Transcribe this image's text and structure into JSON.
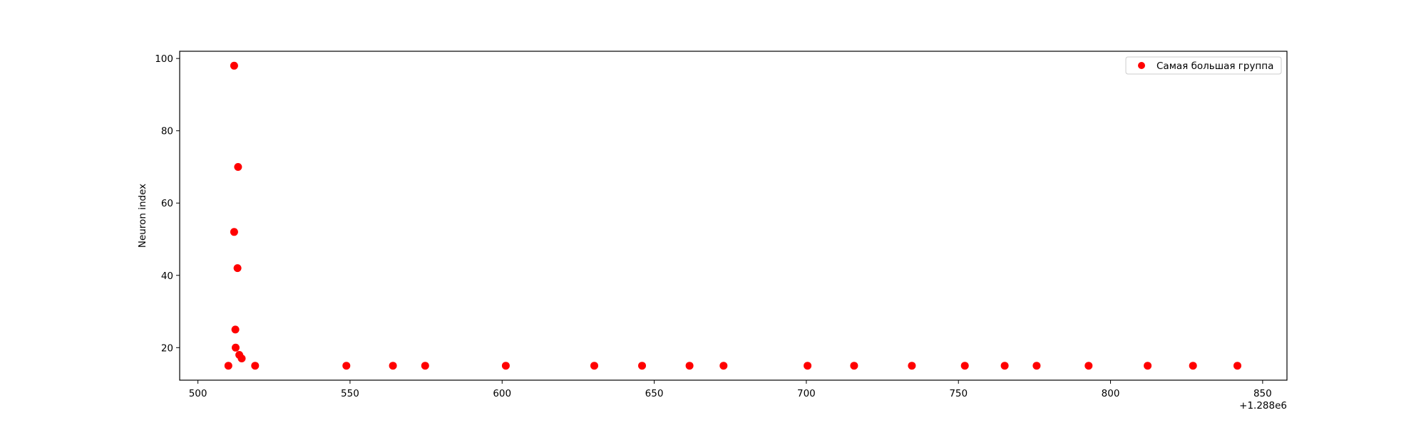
{
  "chart_data": {
    "type": "scatter",
    "title": "",
    "xlabel": "",
    "ylabel": "Neuron index",
    "x_offset_label": "+1.288e6",
    "xlim": [
      494,
      858
    ],
    "ylim": [
      11,
      102
    ],
    "x_ticks": [
      500,
      550,
      600,
      650,
      700,
      750,
      800,
      850
    ],
    "y_ticks": [
      20,
      40,
      60,
      80,
      100
    ],
    "grid": false,
    "legend_position": "top-right",
    "series": [
      {
        "name": "Самая большая группа",
        "color": "#ff0000",
        "points": [
          {
            "x": 510.0,
            "y": 15
          },
          {
            "x": 511.9,
            "y": 98
          },
          {
            "x": 511.9,
            "y": 52
          },
          {
            "x": 512.3,
            "y": 25
          },
          {
            "x": 512.4,
            "y": 20
          },
          {
            "x": 513.0,
            "y": 42
          },
          {
            "x": 513.2,
            "y": 70
          },
          {
            "x": 513.6,
            "y": 18
          },
          {
            "x": 514.4,
            "y": 17
          },
          {
            "x": 518.8,
            "y": 15
          },
          {
            "x": 548.8,
            "y": 15
          },
          {
            "x": 564.1,
            "y": 15
          },
          {
            "x": 574.7,
            "y": 15
          },
          {
            "x": 601.2,
            "y": 15
          },
          {
            "x": 630.3,
            "y": 15
          },
          {
            "x": 646.0,
            "y": 15
          },
          {
            "x": 661.6,
            "y": 15
          },
          {
            "x": 672.8,
            "y": 15
          },
          {
            "x": 700.4,
            "y": 15
          },
          {
            "x": 715.7,
            "y": 15
          },
          {
            "x": 734.7,
            "y": 15
          },
          {
            "x": 752.1,
            "y": 15
          },
          {
            "x": 765.2,
            "y": 15
          },
          {
            "x": 775.7,
            "y": 15
          },
          {
            "x": 792.8,
            "y": 15
          },
          {
            "x": 812.2,
            "y": 15
          },
          {
            "x": 827.1,
            "y": 15
          },
          {
            "x": 841.7,
            "y": 15
          }
        ]
      }
    ]
  }
}
